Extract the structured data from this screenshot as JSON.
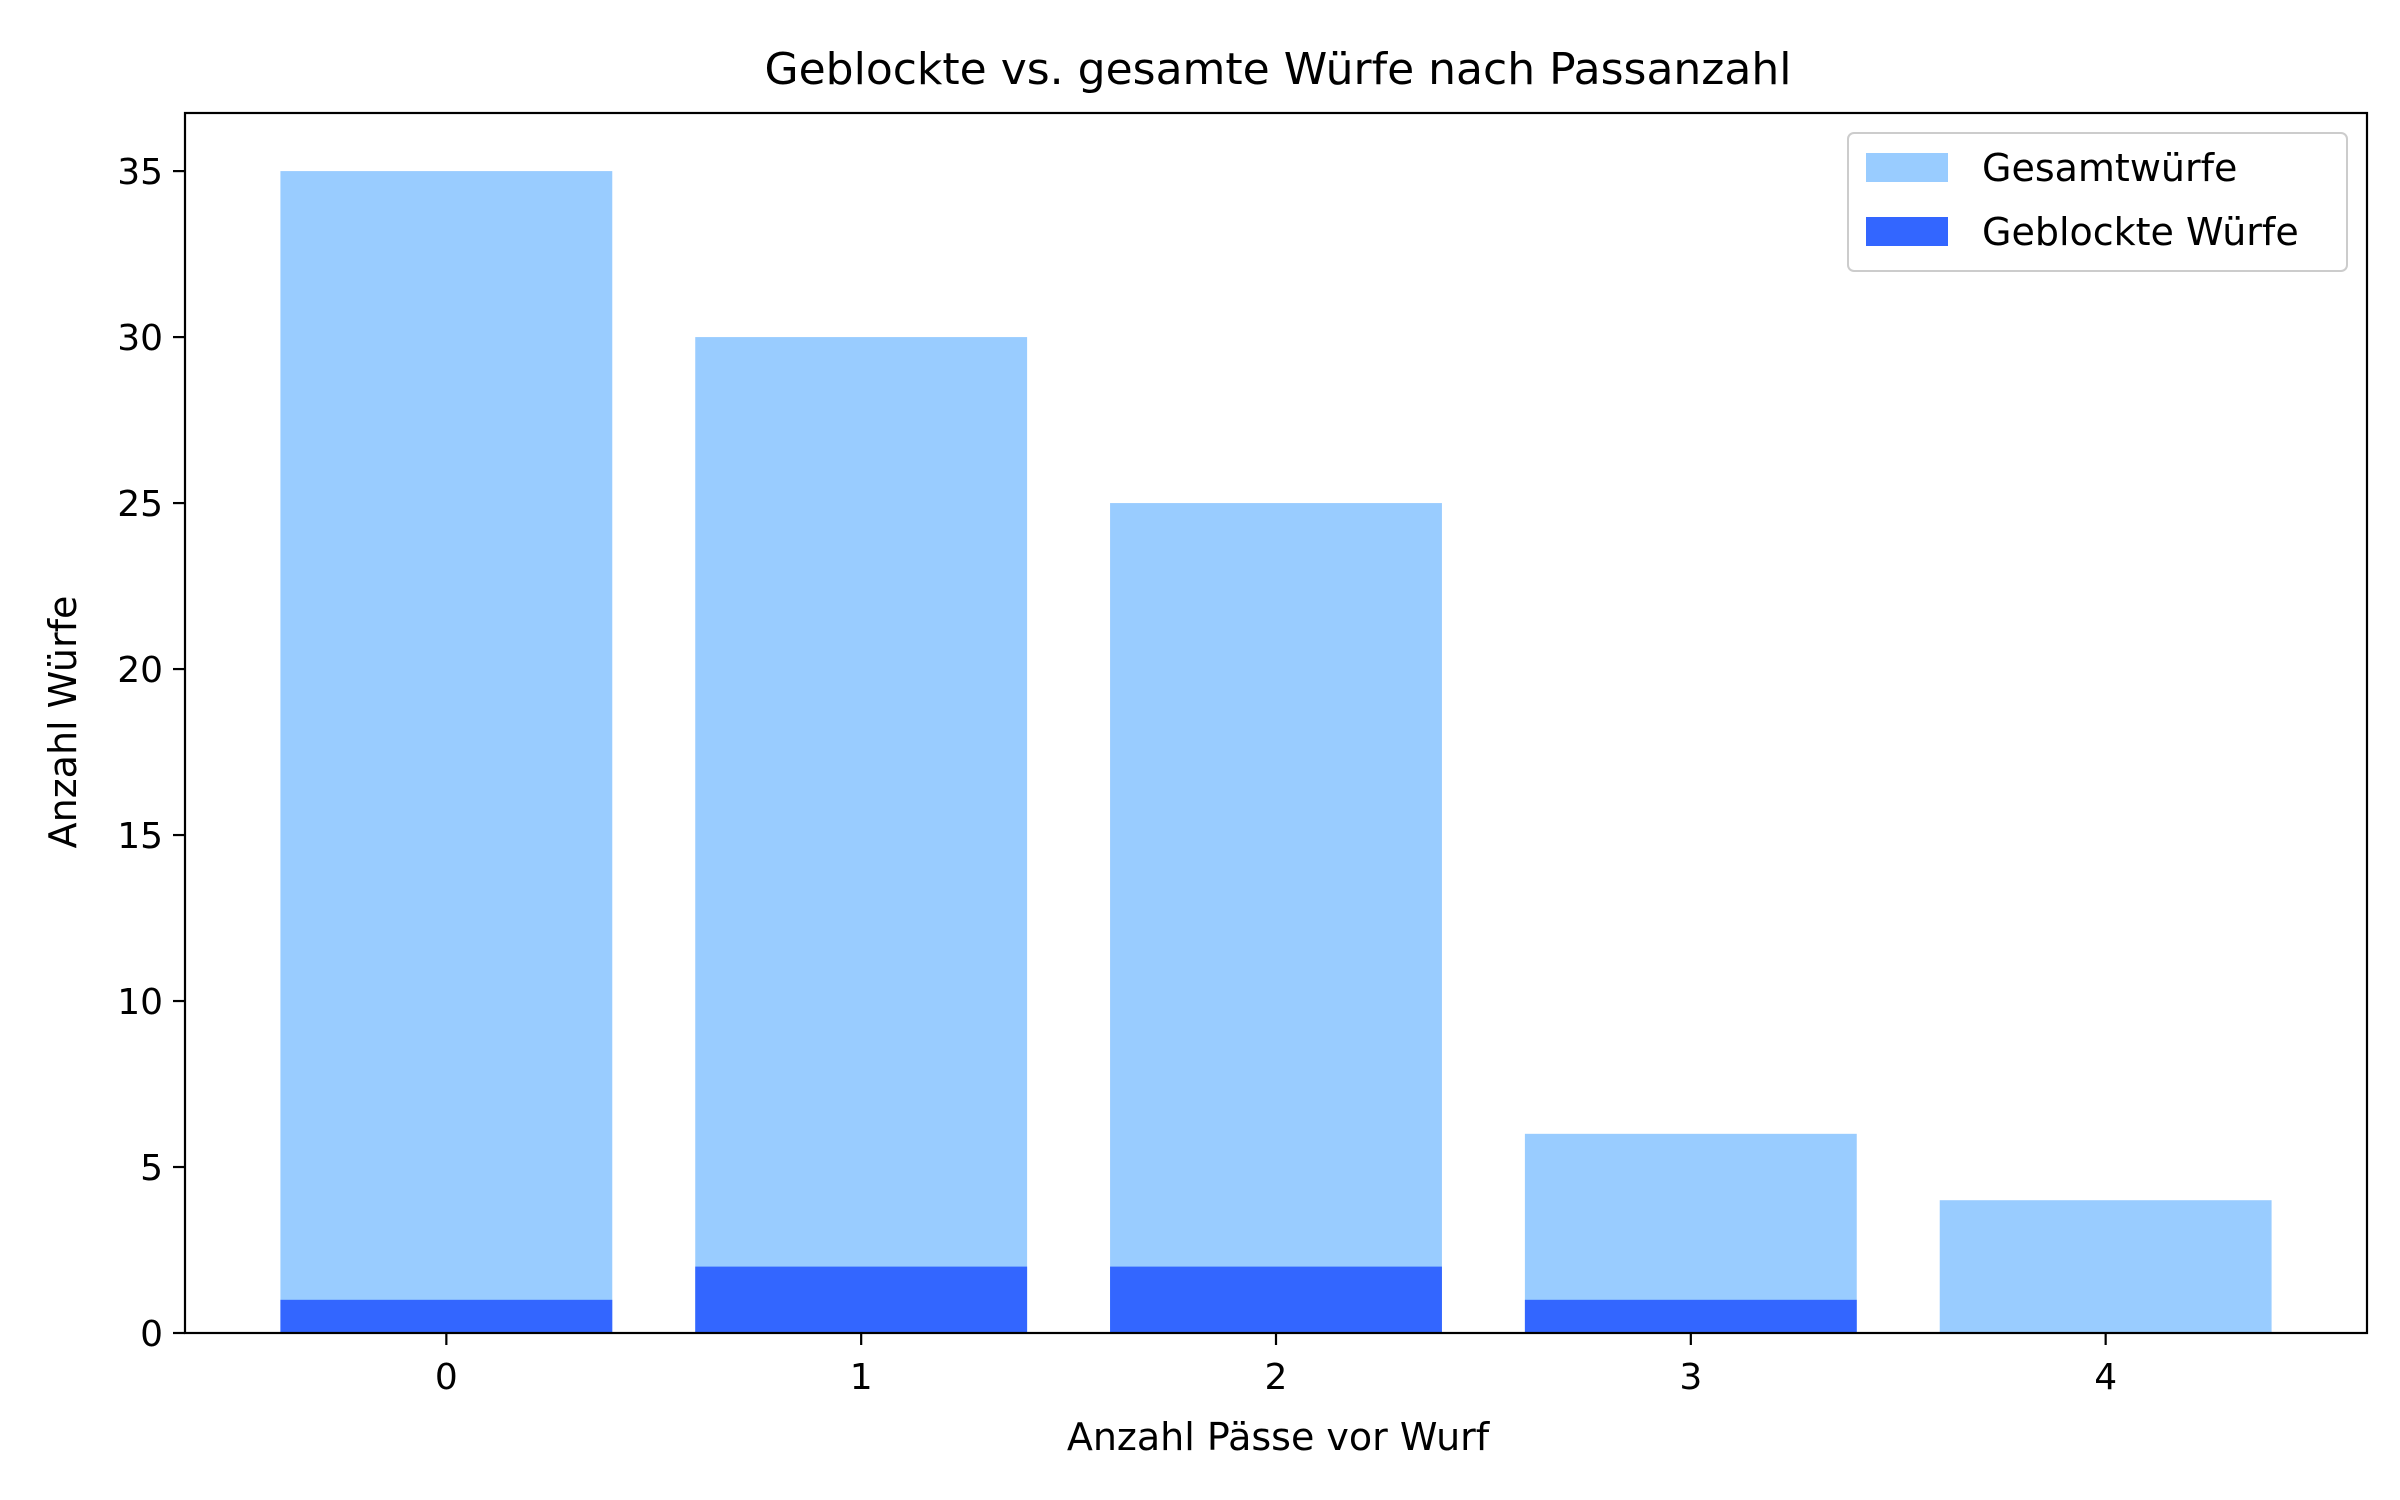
{
  "chart_data": {
    "type": "bar",
    "title": "Geblockte vs. gesamte Würfe nach Passanzahl",
    "xlabel": "Anzahl Pässe vor Wurf",
    "ylabel": "Anzahl Würfe",
    "categories": [
      "0",
      "1",
      "2",
      "3",
      "4"
    ],
    "ylim": [
      0,
      36.75
    ],
    "yticks": [
      0,
      5,
      10,
      15,
      20,
      25,
      30,
      35
    ],
    "grid": false,
    "legend_position": "top-right",
    "series": [
      {
        "name": "Gesamtwürfe",
        "values": [
          35,
          30,
          25,
          6,
          4
        ],
        "color": "#99ccff"
      },
      {
        "name": "Geblockte Würfe",
        "values": [
          1,
          2,
          2,
          1,
          0
        ],
        "color": "#3366ff"
      }
    ]
  }
}
